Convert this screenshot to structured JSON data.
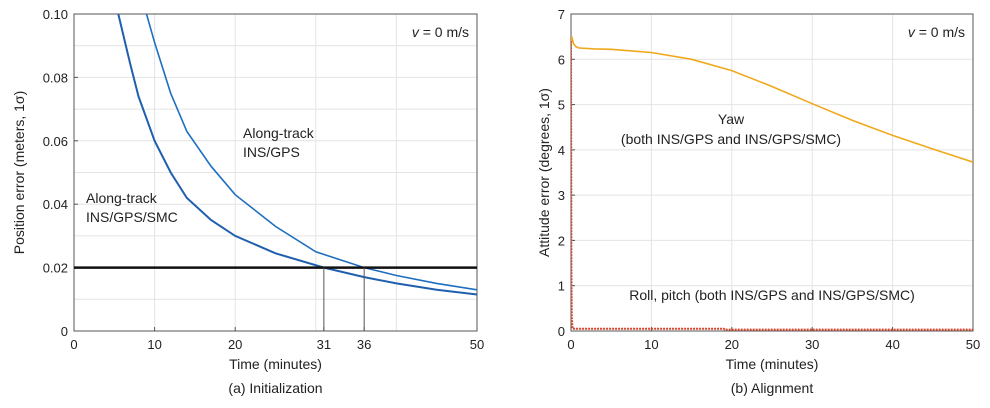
{
  "chart_data": [
    {
      "type": "line",
      "caption": "(a) Initialization",
      "xlabel": "Time (minutes)",
      "ylabel": "Position error (meters, 1σ)",
      "xlim": [
        0,
        50
      ],
      "ylim": [
        0,
        0.1
      ],
      "xticks": [
        0,
        10,
        20,
        31,
        36,
        50
      ],
      "xticklabels": [
        "0",
        "10",
        "20",
        "31",
        "36",
        "50"
      ],
      "xgrid": [
        10,
        20,
        30,
        40
      ],
      "yticks": [
        0,
        0.02,
        0.04,
        0.06,
        0.08,
        0.1
      ],
      "yticklabels": [
        "0",
        "0.02",
        "0.04",
        "0.06",
        "0.08",
        "0.10"
      ],
      "ygrid": [
        0.01,
        0.02,
        0.03,
        0.04,
        0.05,
        0.06,
        0.07,
        0.08,
        0.09
      ],
      "grid": true,
      "annotation": "v = 0 m/s",
      "series": [
        {
          "name": "Along-track INS/GPS/SMC",
          "label_lines": [
            "Along-track",
            "INS/GPS/SMC"
          ],
          "color": "#1f5fae",
          "x": [
            5.5,
            7,
            8,
            10,
            12,
            14,
            17,
            20,
            25,
            31,
            36,
            40,
            45,
            50
          ],
          "y": [
            0.1,
            0.084,
            0.074,
            0.06,
            0.05,
            0.042,
            0.035,
            0.03,
            0.0245,
            0.02,
            0.017,
            0.015,
            0.013,
            0.0115
          ]
        },
        {
          "name": "Along-track INS/GPS",
          "label_lines": [
            "Along-track",
            "INS/GPS"
          ],
          "color": "#1f6fc0",
          "x": [
            9,
            10,
            12,
            14,
            17,
            20,
            25,
            30,
            36,
            40,
            45,
            50
          ],
          "y": [
            0.1,
            0.091,
            0.075,
            0.063,
            0.052,
            0.043,
            0.033,
            0.025,
            0.02,
            0.0175,
            0.015,
            0.013
          ]
        }
      ],
      "threshold": 0.02,
      "crossings": [
        31,
        36
      ]
    },
    {
      "type": "line",
      "caption": "(b) Alignment",
      "xlabel": "Time (minutes)",
      "ylabel": "Attitude error (degrees, 1σ)",
      "xlim": [
        0,
        50
      ],
      "ylim": [
        0,
        7
      ],
      "xticks": [
        0,
        10,
        20,
        30,
        40,
        50
      ],
      "xticklabels": [
        "0",
        "10",
        "20",
        "30",
        "40",
        "50"
      ],
      "yticks": [
        0,
        1,
        2,
        3,
        4,
        5,
        6,
        7
      ],
      "yticklabels": [
        "0",
        "1",
        "2",
        "3",
        "4",
        "5",
        "6",
        "7"
      ],
      "grid": true,
      "annotation": "v = 0 m/s",
      "series": [
        {
          "name": "Yaw (both INS/GPS and INS/GPS/SMC)",
          "label_lines": [
            "Yaw",
            "(both INS/GPS and INS/GPS/SMC)"
          ],
          "color": "#f0a81c",
          "x": [
            0,
            0.1,
            0.3,
            0.6,
            1,
            3,
            5,
            10,
            15,
            20,
            25,
            30,
            35,
            40,
            45,
            50
          ],
          "y": [
            6.3,
            6.5,
            6.35,
            6.28,
            6.25,
            6.23,
            6.22,
            6.15,
            6.0,
            5.75,
            5.4,
            5.02,
            4.65,
            4.32,
            4.02,
            3.73
          ]
        },
        {
          "name": "Roll, pitch (both INS/GPS and INS/GPS/SMC)",
          "label_lines": [
            "Roll, pitch (both INS/GPS and INS/GPS/SMC)"
          ],
          "color": "#d9452b",
          "x": [
            0,
            0.05,
            0.1,
            0.2,
            1,
            19,
            19.1,
            50
          ],
          "y": [
            6.4,
            1.4,
            0.3,
            0.05,
            0.05,
            0.05,
            0.03,
            0.03
          ]
        }
      ]
    }
  ]
}
